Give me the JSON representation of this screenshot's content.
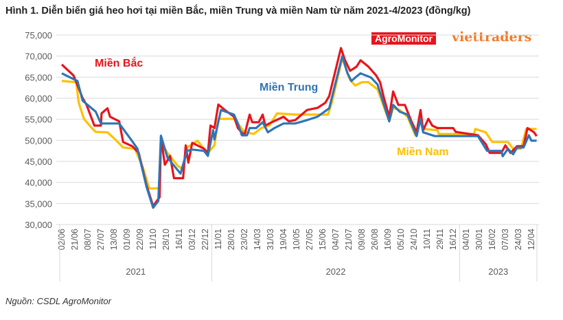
{
  "title": "Hình 1. Diễn biến giá heo hơi tại miền Bắc, miền Trung và miền Nam từ năm 2021-4/2023 (đồng/kg)",
  "source": "Nguồn: CSDL AgroMonitor",
  "logos": {
    "agromonitor": "AgroMonitor",
    "viettraders": "viettraders"
  },
  "colors": {
    "bac": "#e8141b",
    "trung": "#2e75b6",
    "nam": "#ffc000",
    "grid": "#d9d9d9",
    "axis_text": "#595959"
  },
  "chart_data": {
    "type": "line",
    "title": "Hình 1. Diễn biến giá heo hơi tại miền Bắc, miền Trung và miền Nam từ năm 2021-4/2023 (đồng/kg)",
    "xlabel": "",
    "ylabel": "đồng/kg",
    "ylim": [
      30000,
      75000
    ],
    "yticks": [
      "30,000",
      "35,000",
      "40,000",
      "45,000",
      "50,000",
      "55,000",
      "60,000",
      "65,000",
      "70,000",
      "75,000"
    ],
    "ytick_values": [
      30000,
      35000,
      40000,
      45000,
      50000,
      55000,
      60000,
      65000,
      70000,
      75000
    ],
    "grid": true,
    "categories": [
      "02/06",
      "21/06",
      "08/07",
      "27/07",
      "13/08",
      "01/09",
      "22/09",
      "11/10",
      "28/10",
      "16/11",
      "03/12",
      "22/12",
      "11/01",
      "28/01",
      "23/02",
      "14/03",
      "31/03",
      "19/04",
      "10/05",
      "27/05",
      "15/06",
      "04/07",
      "21/07",
      "09/08",
      "26/08",
      "16/09",
      "05/10",
      "24/10",
      "10/11",
      "29/11",
      "16/12",
      "04/01",
      "30/01",
      "16/02",
      "07/03",
      "24/03",
      "12/04"
    ],
    "years": [
      {
        "label": "2021",
        "from": 0,
        "to": 11
      },
      {
        "label": "2022",
        "from": 12,
        "to": 30
      },
      {
        "label": "2023",
        "from": 31,
        "to": 36
      }
    ],
    "series": [
      {
        "name": "Miền Bắc",
        "color": "#e8141b",
        "x": [
          0,
          0.9,
          1.6,
          1.9,
          2.5,
          3.0,
          3.05,
          3.5,
          3.7,
          4.4,
          4.7,
          5.4,
          5.9,
          6.5,
          7.0,
          7.5,
          7.6,
          7.9,
          8.3,
          8.6,
          9.3,
          9.5,
          9.7,
          10.0,
          10.9,
          11.2,
          11.4,
          11.7,
          12.0,
          12.5,
          13.2,
          13.5,
          14.0,
          14.4,
          14.6,
          15.1,
          15.4,
          15.6,
          15.9,
          17.0,
          17.4,
          17.9,
          18.8,
          19.6,
          20.2,
          20.5,
          21.1,
          21.4,
          21.7,
          22.1,
          22.6,
          22.9,
          23.5,
          24.1,
          24.4,
          24.7,
          25.1,
          25.4,
          25.8,
          26.3,
          26.8,
          27.2,
          27.5,
          27.7,
          28.1,
          28.4,
          28.8,
          30.0,
          30.2,
          31.9,
          32.5,
          32.8,
          33.7,
          34.0,
          34.4,
          34.9,
          35.4,
          35.7,
          36.2,
          36.4
        ],
        "y": [
          68000,
          65400,
          60000,
          58400,
          53500,
          53500,
          56400,
          57600,
          55600,
          54500,
          49600,
          48600,
          47000,
          39300,
          34400,
          36500,
          50700,
          44200,
          46300,
          41000,
          41000,
          48800,
          44700,
          49400,
          48000,
          47000,
          53500,
          52900,
          58500,
          57200,
          55600,
          52900,
          51200,
          56100,
          54300,
          54300,
          56100,
          53500,
          54000,
          55600,
          54500,
          54800,
          57200,
          57700,
          58900,
          60500,
          68100,
          71900,
          69100,
          66500,
          67500,
          69000,
          67500,
          65400,
          63800,
          60000,
          55600,
          61600,
          58400,
          58400,
          54500,
          51900,
          57200,
          52400,
          55100,
          53500,
          52900,
          52900,
          52000,
          51200,
          49100,
          47000,
          47000,
          48800,
          47000,
          48600,
          48600,
          52900,
          51900,
          51000
        ]
      },
      {
        "name": "Miền Trung",
        "color": "#2e75b6",
        "x": [
          0,
          1.2,
          1.6,
          2.6,
          3.0,
          4.4,
          5.3,
          5.8,
          6.5,
          7.0,
          7.4,
          7.6,
          8.1,
          9.1,
          9.6,
          10.0,
          10.9,
          11.2,
          11.6,
          11.7,
          12.2,
          13.2,
          13.5,
          13.8,
          14.2,
          14.4,
          14.9,
          15.4,
          15.8,
          16.3,
          17.0,
          17.9,
          18.8,
          19.6,
          20.5,
          20.9,
          21.5,
          21.9,
          22.2,
          22.5,
          22.9,
          23.7,
          24.2,
          25.1,
          25.4,
          25.9,
          26.5,
          27.2,
          27.5,
          27.7,
          28.6,
          31.9,
          32.6,
          33.7,
          33.8,
          34.2,
          34.6,
          34.9,
          35.4,
          35.8,
          36.0,
          36.4
        ],
        "y": [
          65900,
          64100,
          59400,
          56800,
          54000,
          54000,
          50200,
          48000,
          38900,
          34000,
          35600,
          51100,
          45900,
          42100,
          47500,
          47800,
          47500,
          46300,
          52400,
          50200,
          57200,
          56100,
          54000,
          51200,
          51200,
          52900,
          52900,
          54300,
          51900,
          52900,
          54000,
          54000,
          54800,
          55600,
          57600,
          62600,
          70000,
          65900,
          64100,
          64900,
          65900,
          64900,
          63300,
          54500,
          58400,
          56800,
          56100,
          51000,
          55100,
          51900,
          51000,
          51000,
          47500,
          47500,
          46200,
          48000,
          46700,
          48300,
          48300,
          51200,
          49900,
          49900
        ]
      },
      {
        "name": "Miền Nam",
        "color": "#ffc000",
        "x": [
          0,
          1.1,
          1.3,
          1.7,
          2.3,
          2.6,
          3.5,
          4.1,
          4.7,
          5.6,
          6.2,
          6.7,
          7.5,
          7.6,
          8.1,
          8.9,
          9.3,
          9.6,
          10.4,
          10.9,
          11.2,
          11.7,
          12.0,
          13.2,
          14.0,
          14.7,
          15.3,
          15.9,
          16.5,
          17.9,
          19.8,
          20.4,
          20.7,
          21.5,
          22.1,
          22.5,
          23.0,
          23.5,
          24.2,
          25.1,
          25.4,
          25.9,
          26.5,
          27.1,
          27.5,
          27.7,
          28.8,
          28.9,
          31.6,
          31.7,
          32.5,
          33.0,
          34.2,
          34.6,
          35.2,
          35.6,
          36.4
        ],
        "y": [
          64100,
          63800,
          58900,
          55100,
          52900,
          52000,
          51900,
          50200,
          48300,
          48000,
          43700,
          38600,
          38600,
          49600,
          47000,
          43900,
          43100,
          48300,
          49900,
          48000,
          47000,
          48800,
          55100,
          55100,
          52000,
          51500,
          52900,
          53500,
          56400,
          56100,
          56100,
          56100,
          58900,
          69500,
          64300,
          63000,
          63800,
          63800,
          62100,
          54500,
          57700,
          57200,
          55600,
          51200,
          55100,
          52700,
          52400,
          51500,
          51500,
          52700,
          51900,
          49600,
          49600,
          48000,
          48000,
          52700,
          52700
        ]
      }
    ],
    "annotations": [
      "Miền Bắc",
      "Miền Trung",
      "Miền Nam"
    ]
  }
}
